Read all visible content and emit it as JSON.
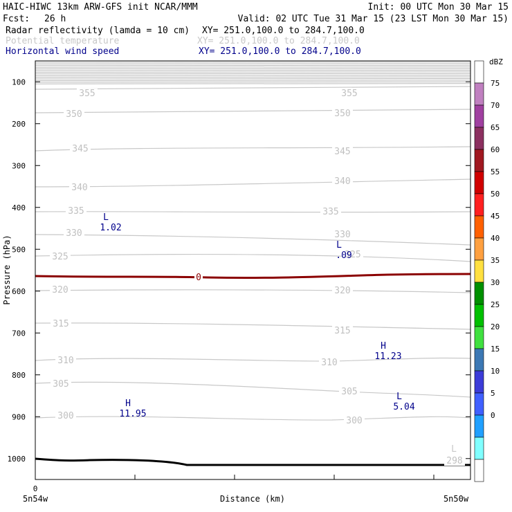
{
  "header": {
    "title": "HAIC-HIWC 13km ARW-GFS init  NCAR/MMM",
    "init": "Init: 00 UTC Mon 30 Mar 15",
    "fcst_label": "Fcst:",
    "fcst_value": "26 h",
    "valid": "Valid: 02 UTC Tue 31 Mar 15 (23 LST Mon 30 Mar 15)",
    "fields": [
      {
        "name": "Radar reflectivity (lamda = 10 cm)",
        "xy": "XY= 251.0,100.0 to 284.7,100.0",
        "color": "#000000"
      },
      {
        "name": "Potential temperature",
        "xy": "XY= 251.0,100.0 to 284.7,100.0",
        "color": "#c8c8c8"
      },
      {
        "name": "Horizontal wind speed",
        "xy": "XY= 251.0,100.0 to 284.7,100.0",
        "color": "#00008b"
      }
    ]
  },
  "chart_data": {
    "type": "contour cross-section",
    "ylabel": "Pressure (hPa)",
    "xlabel": "Distance (km)",
    "ylim": [
      1050,
      50
    ],
    "y_ticks": [
      100,
      200,
      300,
      400,
      500,
      600,
      700,
      800,
      900,
      1000
    ],
    "x_tick_start": "0",
    "x_left_label": "5n54w",
    "x_right_label": "5n50w",
    "theta_labels": [
      {
        "text": "355"
      },
      {
        "text": "355"
      },
      {
        "text": "350"
      },
      {
        "text": "350"
      },
      {
        "text": "345"
      },
      {
        "text": "345"
      },
      {
        "text": "340"
      },
      {
        "text": "340"
      },
      {
        "text": "335"
      },
      {
        "text": "335"
      },
      {
        "text": "330"
      },
      {
        "text": "330"
      },
      {
        "text": "325"
      },
      {
        "text": "325"
      },
      {
        "text": "320"
      },
      {
        "text": "320"
      },
      {
        "text": "315"
      },
      {
        "text": "315"
      },
      {
        "text": "310"
      },
      {
        "text": "310"
      },
      {
        "text": "305"
      },
      {
        "text": "305"
      },
      {
        "text": "300"
      },
      {
        "text": "300"
      },
      {
        "text": "298"
      }
    ],
    "freezing_label": "0",
    "extrema": [
      {
        "kind": "L",
        "value": "1.02",
        "color": "#00008b"
      },
      {
        "kind": "L",
        "value": ".09",
        "color": "#00008b"
      },
      {
        "kind": "H",
        "value": "11.23",
        "color": "#00008b"
      },
      {
        "kind": "L",
        "value": "5.04",
        "color": "#00008b"
      },
      {
        "kind": "H",
        "value": "11.95",
        "color": "#00008b"
      },
      {
        "kind": "L",
        "value": "",
        "color": "#c8c8c8"
      }
    ],
    "colorbar": {
      "unit": "dBZ",
      "levels": [
        "75",
        "70",
        "65",
        "60",
        "55",
        "50",
        "45",
        "40",
        "35",
        "30",
        "25",
        "20",
        "15",
        "10",
        "5",
        "0"
      ],
      "colors": [
        "#ffffff",
        "#c080c0",
        "#a040a0",
        "#8c3060",
        "#a01820",
        "#d00000",
        "#ff2020",
        "#ff6000",
        "#ffa040",
        "#ffe040",
        "#009000",
        "#00c000",
        "#40e040",
        "#3c78b4",
        "#3c3cd8",
        "#4060ff",
        "#20a0ff",
        "#80ffff",
        "#ffffff"
      ]
    }
  }
}
